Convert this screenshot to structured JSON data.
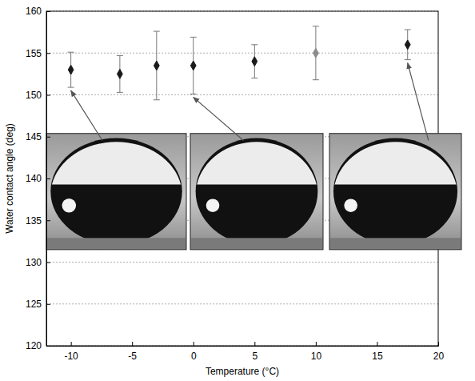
{
  "chart_data": {
    "type": "scatter",
    "x_label": "Temperature (°C)",
    "y_label": "Water contact angle (deg)",
    "x": [
      -10,
      -6,
      -3,
      0,
      5,
      10,
      17.5
    ],
    "values": [
      153,
      152.5,
      153.5,
      153.5,
      154,
      155,
      156
    ],
    "errors": [
      2.1,
      2.2,
      4.1,
      3.4,
      2,
      3.2,
      1.8
    ],
    "colors": [
      "#1a1a1a",
      "#1a1a1a",
      "#1a1a1a",
      "#1a1a1a",
      "#1a1a1a",
      "#8c8c8c",
      "#1a1a1a"
    ],
    "marker": "diamond",
    "xlim": [
      -12,
      20
    ],
    "ylim": [
      120,
      160
    ],
    "xticks": [
      -10,
      -5,
      0,
      5,
      10,
      15,
      20
    ],
    "yticks": [
      120,
      125,
      130,
      135,
      140,
      145,
      150,
      155,
      160
    ],
    "grid": true
  }
}
